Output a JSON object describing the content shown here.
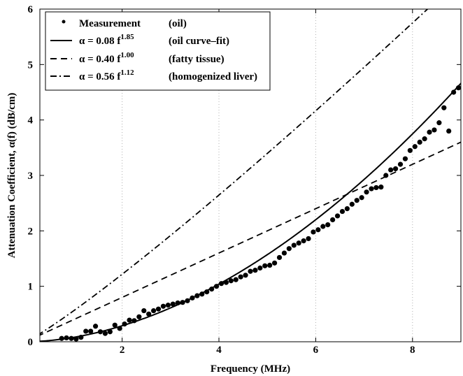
{
  "chart_data": {
    "type": "line",
    "xlabel": "Frequency (MHz)",
    "ylabel": "Attenuation Coefficient, α(f) (dB/cm)",
    "xlim": [
      0.3,
      9.0
    ],
    "ylim": [
      0,
      6
    ],
    "x_ticks": [
      "2",
      "4",
      "6",
      "8"
    ],
    "x_tick_values": [
      2,
      4,
      6,
      8
    ],
    "y_ticks": [
      "0",
      "1",
      "2",
      "3",
      "4",
      "5",
      "6"
    ],
    "y_tick_values": [
      0,
      1,
      2,
      3,
      4,
      5,
      6
    ],
    "grid": "vertical dotted",
    "legend_position": "top-left",
    "series": [
      {
        "kind": "scatter",
        "legend_left": "Measurement",
        "legend_right": "(oil)",
        "x": [
          0.75,
          0.85,
          0.95,
          1.05,
          1.15,
          1.25,
          1.35,
          1.45,
          1.55,
          1.65,
          1.75,
          1.85,
          1.95,
          2.05,
          2.15,
          2.25,
          2.35,
          2.45,
          2.55,
          2.65,
          2.75,
          2.85,
          2.95,
          3.05,
          3.15,
          3.25,
          3.35,
          3.45,
          3.55,
          3.65,
          3.75,
          3.85,
          3.95,
          4.05,
          4.15,
          4.25,
          4.35,
          4.45,
          4.55,
          4.65,
          4.75,
          4.85,
          4.95,
          5.05,
          5.15,
          5.25,
          5.35,
          5.45,
          5.55,
          5.65,
          5.75,
          5.85,
          5.95,
          6.05,
          6.15,
          6.25,
          6.35,
          6.45,
          6.55,
          6.65,
          6.75,
          6.85,
          6.95,
          7.05,
          7.15,
          7.25,
          7.35,
          7.45,
          7.55,
          7.65,
          7.75,
          7.85,
          7.95,
          8.05,
          8.15,
          8.25,
          8.35,
          8.45,
          8.55,
          8.65,
          8.75,
          8.85,
          8.95
        ],
        "y": [
          0.06,
          0.07,
          0.06,
          0.05,
          0.08,
          0.19,
          0.19,
          0.28,
          0.18,
          0.15,
          0.18,
          0.3,
          0.24,
          0.32,
          0.39,
          0.38,
          0.45,
          0.56,
          0.5,
          0.56,
          0.59,
          0.64,
          0.66,
          0.68,
          0.7,
          0.71,
          0.74,
          0.79,
          0.83,
          0.86,
          0.9,
          0.95,
          1.0,
          1.05,
          1.07,
          1.1,
          1.12,
          1.17,
          1.2,
          1.27,
          1.29,
          1.33,
          1.37,
          1.38,
          1.42,
          1.52,
          1.6,
          1.68,
          1.74,
          1.78,
          1.82,
          1.86,
          1.98,
          2.02,
          2.08,
          2.11,
          2.2,
          2.27,
          2.35,
          2.4,
          2.48,
          2.55,
          2.6,
          2.7,
          2.76,
          2.78,
          2.79,
          3.0,
          3.1,
          3.12,
          3.2,
          3.3,
          3.45,
          3.52,
          3.6,
          3.66,
          3.78,
          3.82,
          3.95,
          4.22,
          3.8,
          4.5,
          4.58
        ]
      },
      {
        "kind": "line",
        "dash": "solid",
        "legend_left": "α = 0.08 f",
        "exponent": "1.85",
        "legend_right": "(oil curve–fit)",
        "a": 0.08,
        "b": 1.85
      },
      {
        "kind": "line",
        "dash": "dashed",
        "legend_left": "α = 0.40 f",
        "exponent": "1.00",
        "legend_right": "(fatty tissue)",
        "a": 0.4,
        "b": 1.0
      },
      {
        "kind": "line",
        "dash": "dashdot",
        "legend_left": "α = 0.56 f",
        "exponent": "1.12",
        "legend_right": "(homogenized liver)",
        "a": 0.56,
        "b": 1.12
      }
    ]
  }
}
